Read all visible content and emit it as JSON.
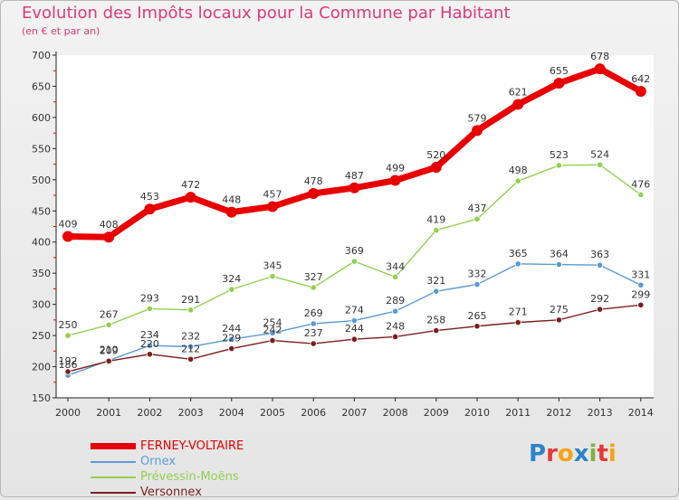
{
  "title": "Evolution des Impôts locaux pour la Commune par Habitant",
  "subtitle": "(en € et par an)",
  "logo": {
    "letters": [
      "P",
      "r",
      "o",
      "x",
      "i",
      "t",
      "i"
    ],
    "colors": [
      "#2b83c8",
      "#e53935",
      "#f2a516",
      "#2b83c8",
      "#7cb342",
      "#e53935",
      "#f2a516"
    ]
  },
  "chart_data": {
    "type": "line",
    "title": "Evolution des Impôts locaux pour la Commune par Habitant",
    "subtitle": "(en € et par an)",
    "xlabel": "",
    "ylabel": "",
    "x": [
      "2000",
      "2001",
      "2002",
      "2003",
      "2004",
      "2005",
      "2006",
      "2007",
      "2008",
      "2009",
      "2010",
      "2011",
      "2012",
      "2013",
      "2014"
    ],
    "ylim": [
      150,
      700
    ],
    "yticks": [
      "150",
      "200",
      "250",
      "300",
      "350",
      "400",
      "450",
      "500",
      "550",
      "600",
      "650",
      "700"
    ],
    "grid": false,
    "legend_position": "bottom-left",
    "series": [
      {
        "name": "FERNEY-VOLTAIRE",
        "color": "#e80000",
        "bold": true,
        "values": [
          409,
          408,
          453,
          472,
          448,
          457,
          478,
          487,
          499,
          520,
          579,
          621,
          655,
          678,
          642
        ]
      },
      {
        "name": "Ornex",
        "color": "#5b9bd5",
        "bold": false,
        "values": [
          186,
          210,
          234,
          232,
          244,
          254,
          269,
          274,
          289,
          321,
          332,
          365,
          364,
          363,
          331
        ]
      },
      {
        "name": "Prévessin-Moëns",
        "color": "#92d050",
        "bold": false,
        "values": [
          250,
          267,
          293,
          291,
          324,
          345,
          327,
          369,
          344,
          419,
          437,
          498,
          523,
          524,
          476
        ]
      },
      {
        "name": "Versonnex",
        "color": "#7b1e1e",
        "bold": false,
        "values": [
          192,
          209,
          220,
          212,
          229,
          242,
          237,
          244,
          248,
          258,
          265,
          271,
          275,
          292,
          299
        ]
      }
    ]
  }
}
